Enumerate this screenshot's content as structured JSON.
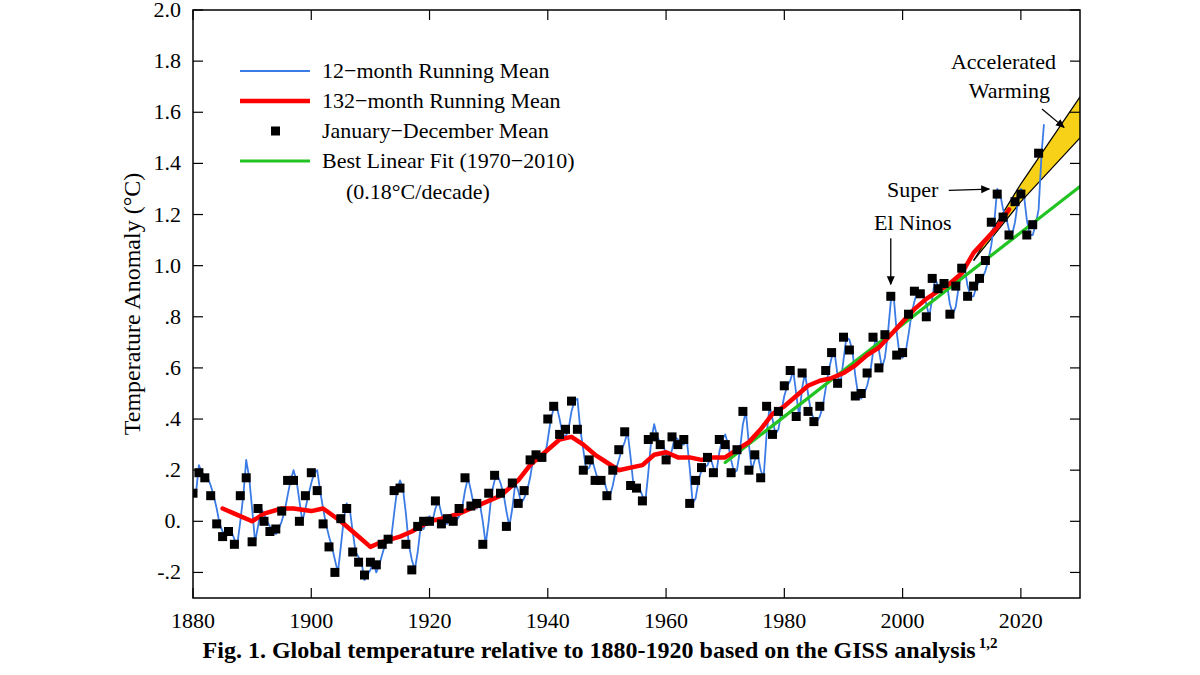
{
  "chart_data": {
    "type": "line",
    "title": "Fig. 1. Global temperature relative to 1880-1920 based on the GISS analysis",
    "title_superscript": "1,2",
    "y_label": "Temperature Anomaly (°C)",
    "xlim": [
      1880,
      2030
    ],
    "xticks": [
      1880,
      1900,
      1920,
      1940,
      1960,
      1980,
      2000,
      2020
    ],
    "ylim": [
      -0.3,
      2.0
    ],
    "yticks": [
      {
        "value": -0.2,
        "label": "-.2"
      },
      {
        "value": 0,
        "label": "0."
      },
      {
        "value": 0.2,
        "label": ".2"
      },
      {
        "value": 0.4,
        "label": ".4"
      },
      {
        "value": 0.6,
        "label": ".6"
      },
      {
        "value": 0.8,
        "label": ".8"
      },
      {
        "value": 1.0,
        "label": "1.0"
      },
      {
        "value": 1.2,
        "label": "1.2"
      },
      {
        "value": 1.4,
        "label": "1.4"
      },
      {
        "value": 1.6,
        "label": "1.6"
      },
      {
        "value": 1.8,
        "label": "1.8"
      },
      {
        "value": 2.0,
        "label": "2.0"
      }
    ],
    "grid": false,
    "legend": "upper left",
    "series": [
      {
        "name": "12−month Running Mean",
        "type": "line",
        "color": "#3b7be6",
        "x": [
          1880.5,
          1881,
          1881.5,
          1882,
          1882.5,
          1883,
          1883.5,
          1884,
          1884.5,
          1885,
          1885.5,
          1886,
          1886.5,
          1887,
          1887.5,
          1888,
          1888.5,
          1889,
          1889.5,
          1890,
          1890.5,
          1891,
          1891.5,
          1892,
          1892.5,
          1893,
          1893.5,
          1894,
          1894.5,
          1895,
          1895.5,
          1896,
          1896.5,
          1897,
          1897.5,
          1898,
          1898.5,
          1899,
          1899.5,
          1900,
          1900.5,
          1901,
          1901.5,
          1902,
          1902.5,
          1903,
          1903.5,
          1904,
          1904.5,
          1905,
          1905.5,
          1906,
          1906.5,
          1907,
          1907.5,
          1908,
          1908.5,
          1909,
          1909.5,
          1910,
          1910.5,
          1911,
          1911.5,
          1912,
          1912.5,
          1913,
          1913.5,
          1914,
          1914.5,
          1915,
          1915.5,
          1916,
          1916.5,
          1917,
          1917.5,
          1918,
          1918.5,
          1919,
          1919.5,
          1920,
          1920.5,
          1921,
          1921.5,
          1922,
          1922.5,
          1923,
          1923.5,
          1924,
          1924.5,
          1925,
          1925.5,
          1926,
          1926.5,
          1927,
          1927.5,
          1928,
          1928.5,
          1929,
          1929.5,
          1930,
          1930.5,
          1931,
          1931.5,
          1932,
          1932.5,
          1933,
          1933.5,
          1934,
          1934.5,
          1935,
          1935.5,
          1936,
          1936.5,
          1937,
          1937.5,
          1938,
          1938.5,
          1939,
          1939.5,
          1940,
          1940.5,
          1941,
          1941.5,
          1942,
          1942.5,
          1943,
          1943.5,
          1944,
          1944.5,
          1945,
          1945.5,
          1946,
          1946.5,
          1947,
          1947.5,
          1948,
          1948.5,
          1949,
          1949.5,
          1950,
          1950.5,
          1951,
          1951.5,
          1952,
          1952.5,
          1953,
          1953.5,
          1954,
          1954.5,
          1955,
          1955.5,
          1956,
          1956.5,
          1957,
          1957.5,
          1958,
          1958.5,
          1959,
          1959.5,
          1960,
          1960.5,
          1961,
          1961.5,
          1962,
          1962.5,
          1963,
          1963.5,
          1964,
          1964.5,
          1965,
          1965.5,
          1966,
          1966.5,
          1967,
          1967.5,
          1968,
          1968.5,
          1969,
          1969.5,
          1970,
          1970.5,
          1971,
          1971.5,
          1972,
          1972.5,
          1973,
          1973.5,
          1974,
          1974.5,
          1975,
          1975.5,
          1976,
          1976.5,
          1977,
          1977.5,
          1978,
          1978.5,
          1979,
          1979.5,
          1980,
          1980.5,
          1981,
          1981.5,
          1982,
          1982.5,
          1983,
          1983.5,
          1984,
          1984.5,
          1985,
          1985.5,
          1986,
          1986.5,
          1987,
          1987.5,
          1988,
          1988.5,
          1989,
          1989.5,
          1990,
          1990.5,
          1991,
          1991.5,
          1992,
          1992.5,
          1993,
          1993.5,
          1994,
          1994.5,
          1995,
          1995.5,
          1996,
          1996.5,
          1997,
          1997.5,
          1998,
          1998.5,
          1999,
          1999.5,
          2000,
          2000.5,
          2001,
          2001.5,
          2002,
          2002.5,
          2003,
          2003.5,
          2004,
          2004.5,
          2005,
          2005.5,
          2006,
          2006.5,
          2007,
          2007.5,
          2008,
          2008.5,
          2009,
          2009.5,
          2010,
          2010.5,
          2011,
          2011.5,
          2012,
          2012.5,
          2013,
          2013.5,
          2014,
          2014.5,
          2015,
          2015.5,
          2016,
          2016.5,
          2017,
          2017.5,
          2018,
          2018.5,
          2019,
          2019.5,
          2020,
          2020.5,
          2021,
          2021.5,
          2022,
          2022.5,
          2023,
          2023.5,
          2023.9
        ],
        "values": [
          0.11,
          0.22,
          0.19,
          0.18,
          0.17,
          0.14,
          0.1,
          0.05,
          -0.01,
          -0.04,
          -0.06,
          -0.05,
          -0.04,
          -0.07,
          -0.09,
          0.0,
          0.1,
          0.24,
          0.17,
          0.05,
          -0.08,
          -0.02,
          0.05,
          0.03,
          0.0,
          -0.02,
          -0.04,
          -0.05,
          -0.03,
          0.0,
          0.04,
          0.1,
          0.16,
          0.2,
          0.16,
          0.08,
          0.0,
          0.05,
          0.1,
          0.15,
          0.19,
          0.2,
          0.12,
          0.05,
          -0.01,
          -0.06,
          -0.1,
          -0.15,
          -0.2,
          -0.1,
          0.01,
          0.07,
          0.05,
          -0.04,
          -0.12,
          -0.14,
          -0.16,
          -0.23,
          -0.21,
          -0.19,
          -0.16,
          -0.2,
          -0.17,
          -0.13,
          -0.09,
          -0.08,
          -0.07,
          0.03,
          0.12,
          0.16,
          0.13,
          0.03,
          -0.09,
          -0.15,
          -0.19,
          -0.12,
          -0.02,
          -0.03,
          0.0,
          0.02,
          0.0,
          0.05,
          0.08,
          0.03,
          -0.01,
          -0.01,
          0.01,
          0.02,
          0.0,
          0.02,
          0.05,
          0.12,
          0.17,
          0.12,
          0.06,
          0.05,
          0.07,
          0.0,
          -0.09,
          0.0,
          0.11,
          0.16,
          0.18,
          0.15,
          0.11,
          0.04,
          -0.02,
          0.05,
          0.15,
          0.12,
          0.07,
          0.09,
          0.12,
          0.17,
          0.24,
          0.26,
          0.26,
          0.24,
          0.25,
          0.32,
          0.4,
          0.44,
          0.45,
          0.4,
          0.34,
          0.33,
          0.36,
          0.43,
          0.47,
          0.48,
          0.36,
          0.28,
          0.2,
          0.21,
          0.24,
          0.2,
          0.16,
          0.15,
          0.16,
          0.12,
          0.1,
          0.14,
          0.2,
          0.24,
          0.28,
          0.31,
          0.35,
          0.25,
          0.14,
          0.13,
          0.13,
          0.1,
          0.08,
          0.19,
          0.32,
          0.38,
          0.33,
          0.31,
          0.3,
          0.26,
          0.24,
          0.28,
          0.33,
          0.32,
          0.3,
          0.3,
          0.32,
          0.21,
          0.07,
          0.09,
          0.16,
          0.2,
          0.21,
          0.22,
          0.25,
          0.21,
          0.19,
          0.27,
          0.32,
          0.34,
          0.3,
          0.24,
          0.19,
          0.2,
          0.28,
          0.38,
          0.43,
          0.3,
          0.2,
          0.24,
          0.26,
          0.2,
          0.17,
          0.34,
          0.45,
          0.4,
          0.34,
          0.36,
          0.43,
          0.49,
          0.53,
          0.55,
          0.59,
          0.5,
          0.41,
          0.52,
          0.58,
          0.5,
          0.43,
          0.4,
          0.39,
          0.41,
          0.45,
          0.52,
          0.59,
          0.64,
          0.66,
          0.57,
          0.54,
          0.63,
          0.72,
          0.71,
          0.67,
          0.57,
          0.49,
          0.48,
          0.5,
          0.53,
          0.58,
          0.66,
          0.72,
          0.67,
          0.6,
          0.64,
          0.73,
          0.86,
          0.88,
          0.74,
          0.65,
          0.64,
          0.66,
          0.73,
          0.81,
          0.86,
          0.9,
          0.9,
          0.89,
          0.85,
          0.8,
          0.87,
          0.95,
          0.92,
          0.91,
          0.94,
          0.93,
          0.85,
          0.81,
          0.84,
          0.92,
          0.97,
          0.99,
          0.92,
          0.88,
          0.88,
          0.92,
          0.94,
          0.95,
          0.98,
          1.02,
          1.08,
          1.17,
          1.3,
          1.28,
          1.22,
          1.19,
          1.14,
          1.12,
          1.17,
          1.25,
          1.3,
          1.28,
          1.18,
          1.12,
          1.12,
          1.16,
          1.22,
          1.44,
          1.55
        ]
      },
      {
        "name": "132−month Running Mean",
        "type": "line",
        "color": "#ff0000",
        "x": [
          1885,
          1887,
          1890,
          1892,
          1895,
          1897,
          1900,
          1902,
          1905,
          1907,
          1910,
          1912,
          1915,
          1917,
          1920,
          1922,
          1925,
          1927,
          1930,
          1932,
          1935,
          1937,
          1940,
          1942,
          1944,
          1946,
          1948,
          1950,
          1952,
          1954,
          1956,
          1958,
          1960,
          1962,
          1964,
          1966,
          1968,
          1970,
          1972,
          1974,
          1976,
          1978,
          1980,
          1982,
          1984,
          1986,
          1988,
          1990,
          1992,
          1994,
          1996,
          1998,
          2000,
          2002,
          2004,
          2006,
          2008,
          2010,
          2012,
          2014,
          2016,
          2018
        ],
        "values": [
          0.05,
          0.03,
          0.0,
          0.03,
          0.05,
          0.05,
          0.04,
          0.05,
          0.0,
          -0.04,
          -0.1,
          -0.08,
          -0.06,
          -0.04,
          0.0,
          0.01,
          0.03,
          0.05,
          0.08,
          0.1,
          0.16,
          0.22,
          0.28,
          0.32,
          0.33,
          0.3,
          0.26,
          0.23,
          0.2,
          0.21,
          0.22,
          0.26,
          0.27,
          0.25,
          0.25,
          0.24,
          0.25,
          0.25,
          0.28,
          0.31,
          0.36,
          0.42,
          0.45,
          0.49,
          0.53,
          0.55,
          0.56,
          0.58,
          0.61,
          0.65,
          0.68,
          0.73,
          0.78,
          0.83,
          0.87,
          0.9,
          0.93,
          0.97,
          1.05,
          1.1,
          1.15,
          1.22
        ]
      },
      {
        "name": "January−December Mean",
        "type": "scatter",
        "marker": "square",
        "color": "#000000",
        "x": [
          1880,
          1881,
          1882,
          1883,
          1884,
          1885,
          1886,
          1887,
          1888,
          1889,
          1890,
          1891,
          1892,
          1893,
          1894,
          1895,
          1896,
          1897,
          1898,
          1899,
          1900,
          1901,
          1902,
          1903,
          1904,
          1905,
          1906,
          1907,
          1908,
          1909,
          1910,
          1911,
          1912,
          1913,
          1914,
          1915,
          1916,
          1917,
          1918,
          1919,
          1920,
          1921,
          1922,
          1923,
          1924,
          1925,
          1926,
          1927,
          1928,
          1929,
          1930,
          1931,
          1932,
          1933,
          1934,
          1935,
          1936,
          1937,
          1938,
          1939,
          1940,
          1941,
          1942,
          1943,
          1944,
          1945,
          1946,
          1947,
          1948,
          1949,
          1950,
          1951,
          1952,
          1953,
          1954,
          1955,
          1956,
          1957,
          1958,
          1959,
          1960,
          1961,
          1962,
          1963,
          1964,
          1965,
          1966,
          1967,
          1968,
          1969,
          1970,
          1971,
          1972,
          1973,
          1974,
          1975,
          1976,
          1977,
          1978,
          1979,
          1980,
          1981,
          1982,
          1983,
          1984,
          1985,
          1986,
          1987,
          1988,
          1989,
          1990,
          1991,
          1992,
          1993,
          1994,
          1995,
          1996,
          1997,
          1998,
          1999,
          2000,
          2001,
          2002,
          2003,
          2004,
          2005,
          2006,
          2007,
          2008,
          2009,
          2010,
          2011,
          2012,
          2013,
          2014,
          2015,
          2016,
          2017,
          2018,
          2019,
          2020,
          2021,
          2022,
          2023
        ],
        "values": [
          0.11,
          0.19,
          0.17,
          0.1,
          -0.01,
          -0.06,
          -0.04,
          -0.09,
          0.1,
          0.17,
          -0.08,
          0.05,
          0.0,
          -0.04,
          -0.03,
          0.04,
          0.16,
          0.16,
          0.0,
          0.1,
          0.19,
          0.12,
          -0.01,
          -0.1,
          -0.2,
          0.01,
          0.05,
          -0.12,
          -0.16,
          -0.21,
          -0.16,
          -0.17,
          -0.09,
          -0.07,
          0.12,
          0.13,
          -0.09,
          -0.19,
          -0.02,
          0.0,
          0.0,
          0.08,
          -0.01,
          0.01,
          0.0,
          0.05,
          0.17,
          0.06,
          0.07,
          -0.09,
          0.11,
          0.18,
          0.11,
          -0.02,
          0.15,
          0.07,
          0.12,
          0.24,
          0.26,
          0.25,
          0.4,
          0.45,
          0.34,
          0.36,
          0.47,
          0.36,
          0.2,
          0.24,
          0.16,
          0.16,
          0.1,
          0.2,
          0.28,
          0.35,
          0.14,
          0.13,
          0.08,
          0.32,
          0.33,
          0.3,
          0.24,
          0.33,
          0.3,
          0.32,
          0.07,
          0.16,
          0.21,
          0.25,
          0.19,
          0.32,
          0.3,
          0.19,
          0.28,
          0.43,
          0.2,
          0.26,
          0.17,
          0.45,
          0.34,
          0.43,
          0.53,
          0.59,
          0.41,
          0.58,
          0.43,
          0.39,
          0.45,
          0.59,
          0.66,
          0.54,
          0.72,
          0.67,
          0.49,
          0.5,
          0.58,
          0.72,
          0.6,
          0.73,
          0.88,
          0.65,
          0.66,
          0.81,
          0.9,
          0.89,
          0.8,
          0.95,
          0.91,
          0.93,
          0.81,
          0.92,
          0.99,
          0.88,
          0.92,
          0.95,
          1.02,
          1.17,
          1.28,
          1.19,
          1.12,
          1.25,
          1.28,
          1.12,
          1.16,
          1.44
        ]
      },
      {
        "name": "Best Linear Fit (1970−2010) (0.18°C/decade)",
        "type": "line",
        "color": "#22c322",
        "x": [
          1970,
          2030
        ],
        "values": [
          0.23,
          1.31
        ]
      }
    ],
    "band": {
      "color": "#f7d117",
      "x": [
        2012,
        2020,
        2030
      ],
      "low": [
        1.02,
        1.25,
        1.5
      ],
      "high": [
        1.02,
        1.32,
        1.66
      ]
    },
    "annotations": [
      {
        "text": "Super El Ninos",
        "x": [
          1998,
          2016
        ]
      },
      {
        "text": "Accelerated Warming"
      }
    ]
  }
}
